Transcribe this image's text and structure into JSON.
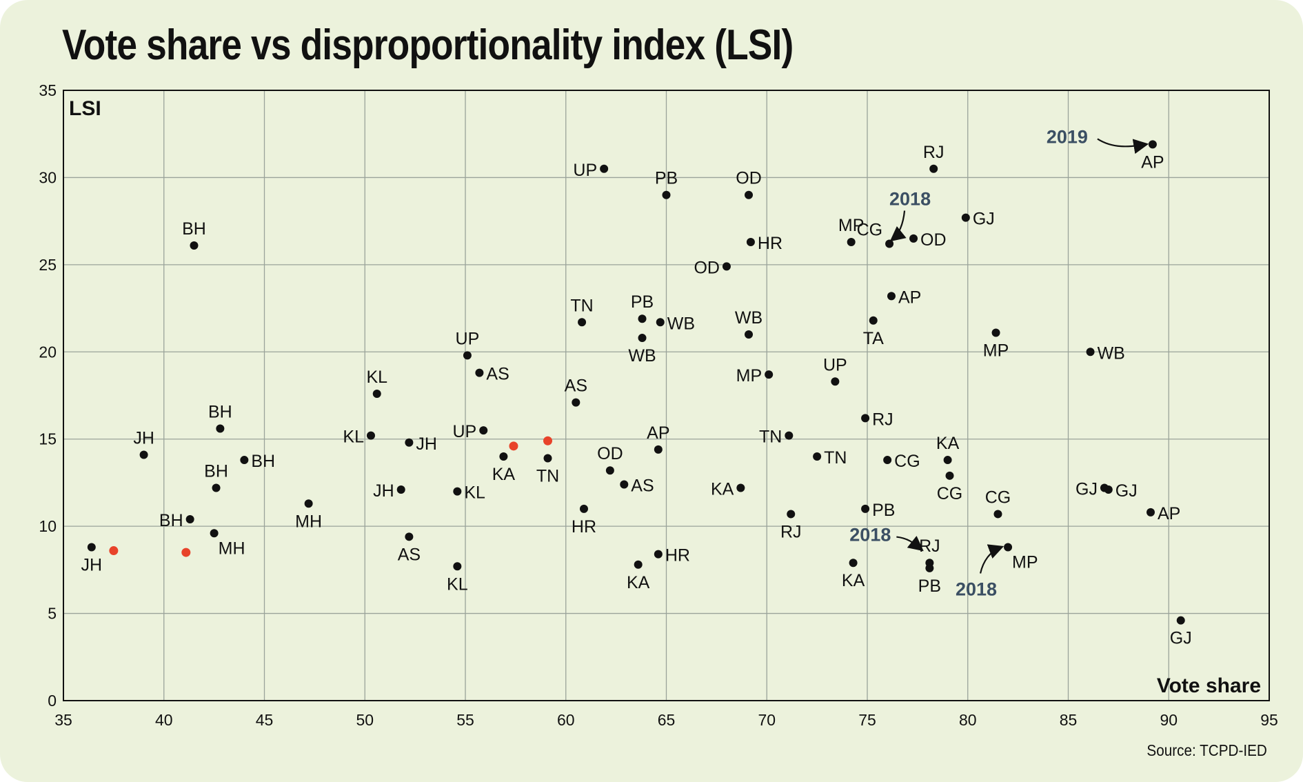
{
  "chart_data": {
    "type": "scatter",
    "title": "Vote share vs disproportionality index (LSI)",
    "xlabel": "Vote share",
    "ylabel": "LSI",
    "xlim": [
      35,
      95
    ],
    "ylim": [
      0,
      35
    ],
    "xticks": [
      35,
      40,
      45,
      50,
      55,
      60,
      65,
      70,
      75,
      80,
      85,
      90,
      95
    ],
    "yticks": [
      0,
      5,
      10,
      15,
      20,
      25,
      30,
      35
    ],
    "grid": true,
    "source": "Source:  TCPD-IED",
    "colors": {
      "point": "#111111",
      "highlight": "#e8432a",
      "grid": "#9aa39a",
      "annotation": "#3b4f63",
      "background": "#ecf2dc"
    },
    "points": [
      {
        "label": "JH",
        "x": 36.4,
        "y": 8.8,
        "pos": "below"
      },
      {
        "label": "JH",
        "x": 39.0,
        "y": 14.1,
        "pos": "above"
      },
      {
        "label": "BH",
        "x": 41.5,
        "y": 26.1,
        "pos": "above"
      },
      {
        "label": "BH",
        "x": 42.8,
        "y": 15.6,
        "pos": "above"
      },
      {
        "label": "BH",
        "x": 44.0,
        "y": 13.8,
        "pos": "right"
      },
      {
        "label": "BH",
        "x": 42.6,
        "y": 12.2,
        "pos": "above"
      },
      {
        "label": "BH",
        "x": 41.3,
        "y": 10.4,
        "pos": "left"
      },
      {
        "label": "MH",
        "x": 42.5,
        "y": 9.6,
        "pos": "belowright"
      },
      {
        "label": "MH",
        "x": 47.2,
        "y": 11.3,
        "pos": "below"
      },
      {
        "label": "KL",
        "x": 50.6,
        "y": 17.6,
        "pos": "above"
      },
      {
        "label": "KL",
        "x": 50.3,
        "y": 15.2,
        "pos": "left"
      },
      {
        "label": "JH",
        "x": 52.2,
        "y": 14.8,
        "pos": "right"
      },
      {
        "label": "JH",
        "x": 51.8,
        "y": 12.1,
        "pos": "left"
      },
      {
        "label": "AS",
        "x": 52.2,
        "y": 9.4,
        "pos": "below"
      },
      {
        "label": "KL",
        "x": 54.6,
        "y": 12.0,
        "pos": "right"
      },
      {
        "label": "KL",
        "x": 54.6,
        "y": 7.7,
        "pos": "below"
      },
      {
        "label": "UP",
        "x": 55.1,
        "y": 19.8,
        "pos": "above"
      },
      {
        "label": "AS",
        "x": 55.7,
        "y": 18.8,
        "pos": "right"
      },
      {
        "label": "UP",
        "x": 55.9,
        "y": 15.5,
        "pos": "left"
      },
      {
        "label": "KA",
        "x": 56.9,
        "y": 14.0,
        "pos": "below"
      },
      {
        "label": "TN",
        "x": 59.1,
        "y": 13.9,
        "pos": "below"
      },
      {
        "label": "AS",
        "x": 60.5,
        "y": 17.1,
        "pos": "above"
      },
      {
        "label": "UP",
        "x": 61.9,
        "y": 30.5,
        "pos": "left"
      },
      {
        "label": "TN",
        "x": 60.8,
        "y": 21.7,
        "pos": "above"
      },
      {
        "label": "HR",
        "x": 60.9,
        "y": 11.0,
        "pos": "below"
      },
      {
        "label": "OD",
        "x": 62.2,
        "y": 13.2,
        "pos": "above"
      },
      {
        "label": "AS",
        "x": 62.9,
        "y": 12.4,
        "pos": "right"
      },
      {
        "label": "KA",
        "x": 63.6,
        "y": 7.8,
        "pos": "below"
      },
      {
        "label": "PB",
        "x": 65.0,
        "y": 29.0,
        "pos": "above"
      },
      {
        "label": "PB",
        "x": 63.8,
        "y": 21.9,
        "pos": "above"
      },
      {
        "label": "WB",
        "x": 64.7,
        "y": 21.7,
        "pos": "right"
      },
      {
        "label": "WB",
        "x": 63.8,
        "y": 20.8,
        "pos": "below"
      },
      {
        "label": "AP",
        "x": 64.6,
        "y": 14.4,
        "pos": "above"
      },
      {
        "label": "HR",
        "x": 64.6,
        "y": 8.4,
        "pos": "right"
      },
      {
        "label": "OD",
        "x": 68.0,
        "y": 24.9,
        "pos": "left"
      },
      {
        "label": "OD",
        "x": 69.1,
        "y": 29.0,
        "pos": "above"
      },
      {
        "label": "HR",
        "x": 69.2,
        "y": 26.3,
        "pos": "right"
      },
      {
        "label": "WB",
        "x": 69.1,
        "y": 21.0,
        "pos": "above"
      },
      {
        "label": "MP",
        "x": 70.1,
        "y": 18.7,
        "pos": "left"
      },
      {
        "label": "KA",
        "x": 68.7,
        "y": 12.2,
        "pos": "left"
      },
      {
        "label": "TN",
        "x": 71.1,
        "y": 15.2,
        "pos": "left"
      },
      {
        "label": "RJ",
        "x": 71.2,
        "y": 10.7,
        "pos": "below"
      },
      {
        "label": "TN",
        "x": 72.5,
        "y": 14.0,
        "pos": "right"
      },
      {
        "label": "UP",
        "x": 73.4,
        "y": 18.3,
        "pos": "above"
      },
      {
        "label": "MP",
        "x": 74.2,
        "y": 26.3,
        "pos": "above"
      },
      {
        "label": "CG",
        "x": 76.1,
        "y": 26.2,
        "pos": "aboveleft"
      },
      {
        "label": "OD",
        "x": 77.3,
        "y": 26.5,
        "pos": "right"
      },
      {
        "label": "AP",
        "x": 76.2,
        "y": 23.2,
        "pos": "right"
      },
      {
        "label": "TA",
        "x": 75.3,
        "y": 21.8,
        "pos": "below"
      },
      {
        "label": "RJ",
        "x": 74.9,
        "y": 16.2,
        "pos": "right"
      },
      {
        "label": "CG",
        "x": 76.0,
        "y": 13.8,
        "pos": "right"
      },
      {
        "label": "PB",
        "x": 74.9,
        "y": 11.0,
        "pos": "right"
      },
      {
        "label": "KA",
        "x": 74.3,
        "y": 7.9,
        "pos": "below"
      },
      {
        "label": "RJ",
        "x": 78.1,
        "y": 7.9,
        "pos": "above"
      },
      {
        "label": "PB",
        "x": 78.1,
        "y": 7.6,
        "pos": "below"
      },
      {
        "label": "RJ",
        "x": 78.3,
        "y": 30.5,
        "pos": "above"
      },
      {
        "label": "GJ",
        "x": 79.9,
        "y": 27.7,
        "pos": "right"
      },
      {
        "label": "KA",
        "x": 79.0,
        "y": 13.8,
        "pos": "above"
      },
      {
        "label": "CG",
        "x": 79.1,
        "y": 12.9,
        "pos": "below"
      },
      {
        "label": "MP",
        "x": 81.4,
        "y": 21.1,
        "pos": "below"
      },
      {
        "label": "CG",
        "x": 81.5,
        "y": 10.7,
        "pos": "above"
      },
      {
        "label": "MP",
        "x": 82.0,
        "y": 8.8,
        "pos": "belowright"
      },
      {
        "label": "WB",
        "x": 86.1,
        "y": 20.0,
        "pos": "right"
      },
      {
        "label": "GJ",
        "x": 86.8,
        "y": 12.2,
        "pos": "left"
      },
      {
        "label": "GJ",
        "x": 87.0,
        "y": 12.1,
        "pos": "right"
      },
      {
        "label": "AP",
        "x": 89.1,
        "y": 10.8,
        "pos": "right"
      },
      {
        "label": "AP",
        "x": 89.2,
        "y": 31.9,
        "pos": "below"
      },
      {
        "label": "GJ",
        "x": 90.6,
        "y": 4.6,
        "pos": "below"
      }
    ],
    "highlighted_points": [
      {
        "x": 37.5,
        "y": 8.6
      },
      {
        "x": 41.1,
        "y": 8.5
      },
      {
        "x": 57.4,
        "y": 14.6
      },
      {
        "x": 59.1,
        "y": 14.9
      }
    ],
    "annotations": [
      {
        "text": "2019",
        "target_x": 89.2,
        "target_y": 31.9
      },
      {
        "text": "2018",
        "target_x": 76.1,
        "target_y": 26.2
      },
      {
        "text": "2018",
        "target_x": 78.1,
        "target_y": 8.6
      },
      {
        "text": "2018",
        "target_x": 82.0,
        "target_y": 8.8
      }
    ]
  }
}
